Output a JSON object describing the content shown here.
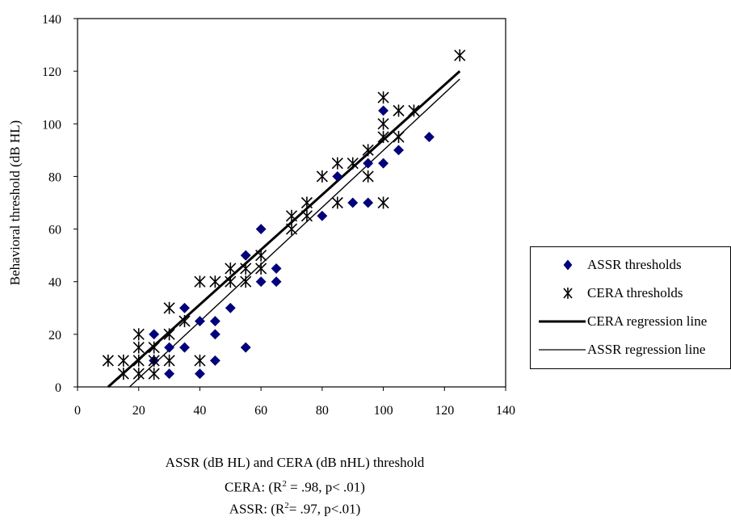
{
  "chart_data": {
    "type": "scatter",
    "xlim": [
      0,
      140
    ],
    "ylim": [
      0,
      140
    ],
    "x_ticks": [
      0,
      20,
      40,
      60,
      80,
      100,
      120,
      140
    ],
    "y_ticks": [
      0,
      20,
      40,
      60,
      80,
      100,
      120,
      140
    ],
    "ylabel": "Behavioral threshold (dB HL)",
    "xlabel": "ASSR (dB HL) and CERA (dB nHL) threshold",
    "grid": false,
    "legend_position": "right",
    "series": [
      {
        "name": "ASSR thresholds",
        "kind": "points",
        "marker": "diamond",
        "color": "#000080",
        "points": [
          [
            25,
            20
          ],
          [
            25,
            10
          ],
          [
            30,
            15
          ],
          [
            30,
            5
          ],
          [
            35,
            30
          ],
          [
            35,
            15
          ],
          [
            40,
            25
          ],
          [
            40,
            5
          ],
          [
            45,
            25
          ],
          [
            45,
            20
          ],
          [
            45,
            10
          ],
          [
            50,
            30
          ],
          [
            55,
            50
          ],
          [
            55,
            15
          ],
          [
            60,
            60
          ],
          [
            60,
            40
          ],
          [
            65,
            45
          ],
          [
            65,
            40
          ],
          [
            80,
            65
          ],
          [
            85,
            80
          ],
          [
            90,
            70
          ],
          [
            95,
            85
          ],
          [
            95,
            70
          ],
          [
            100,
            105
          ],
          [
            100,
            85
          ],
          [
            105,
            90
          ],
          [
            115,
            95
          ]
        ]
      },
      {
        "name": "CERA thresholds",
        "kind": "points",
        "marker": "asterisk",
        "color": "#000000",
        "points": [
          [
            10,
            10
          ],
          [
            15,
            10
          ],
          [
            15,
            5
          ],
          [
            20,
            20
          ],
          [
            20,
            15
          ],
          [
            20,
            10
          ],
          [
            20,
            5
          ],
          [
            25,
            15
          ],
          [
            25,
            10
          ],
          [
            25,
            5
          ],
          [
            30,
            30
          ],
          [
            30,
            20
          ],
          [
            30,
            10
          ],
          [
            35,
            25
          ],
          [
            40,
            40
          ],
          [
            40,
            10
          ],
          [
            45,
            40
          ],
          [
            50,
            45
          ],
          [
            50,
            40
          ],
          [
            55,
            45
          ],
          [
            55,
            40
          ],
          [
            60,
            50
          ],
          [
            60,
            45
          ],
          [
            70,
            65
          ],
          [
            70,
            60
          ],
          [
            75,
            70
          ],
          [
            75,
            65
          ],
          [
            80,
            80
          ],
          [
            85,
            85
          ],
          [
            85,
            70
          ],
          [
            90,
            85
          ],
          [
            95,
            90
          ],
          [
            95,
            80
          ],
          [
            100,
            110
          ],
          [
            100,
            100
          ],
          [
            100,
            95
          ],
          [
            100,
            70
          ],
          [
            105,
            105
          ],
          [
            105,
            95
          ],
          [
            110,
            105
          ],
          [
            125,
            126
          ]
        ]
      },
      {
        "name": "CERA regression line",
        "kind": "line",
        "stroke": 3,
        "color": "#000000",
        "points": [
          [
            10,
            0
          ],
          [
            125,
            120
          ]
        ]
      },
      {
        "name": "ASSR regression line",
        "kind": "line",
        "stroke": 1.4,
        "color": "#000000",
        "points": [
          [
            17,
            0
          ],
          [
            125,
            117
          ]
        ]
      }
    ],
    "caption": {
      "line1": "ASSR (dB HL) and CERA (dB nHL) threshold",
      "cera_prefix": "CERA:  (R",
      "cera_sup": "2",
      "cera_suffix": " = .98, p< .01)",
      "assr_prefix": "ASSR:   (R",
      "assr_sup": "2",
      "assr_suffix": "= .97, p<.01)"
    }
  }
}
